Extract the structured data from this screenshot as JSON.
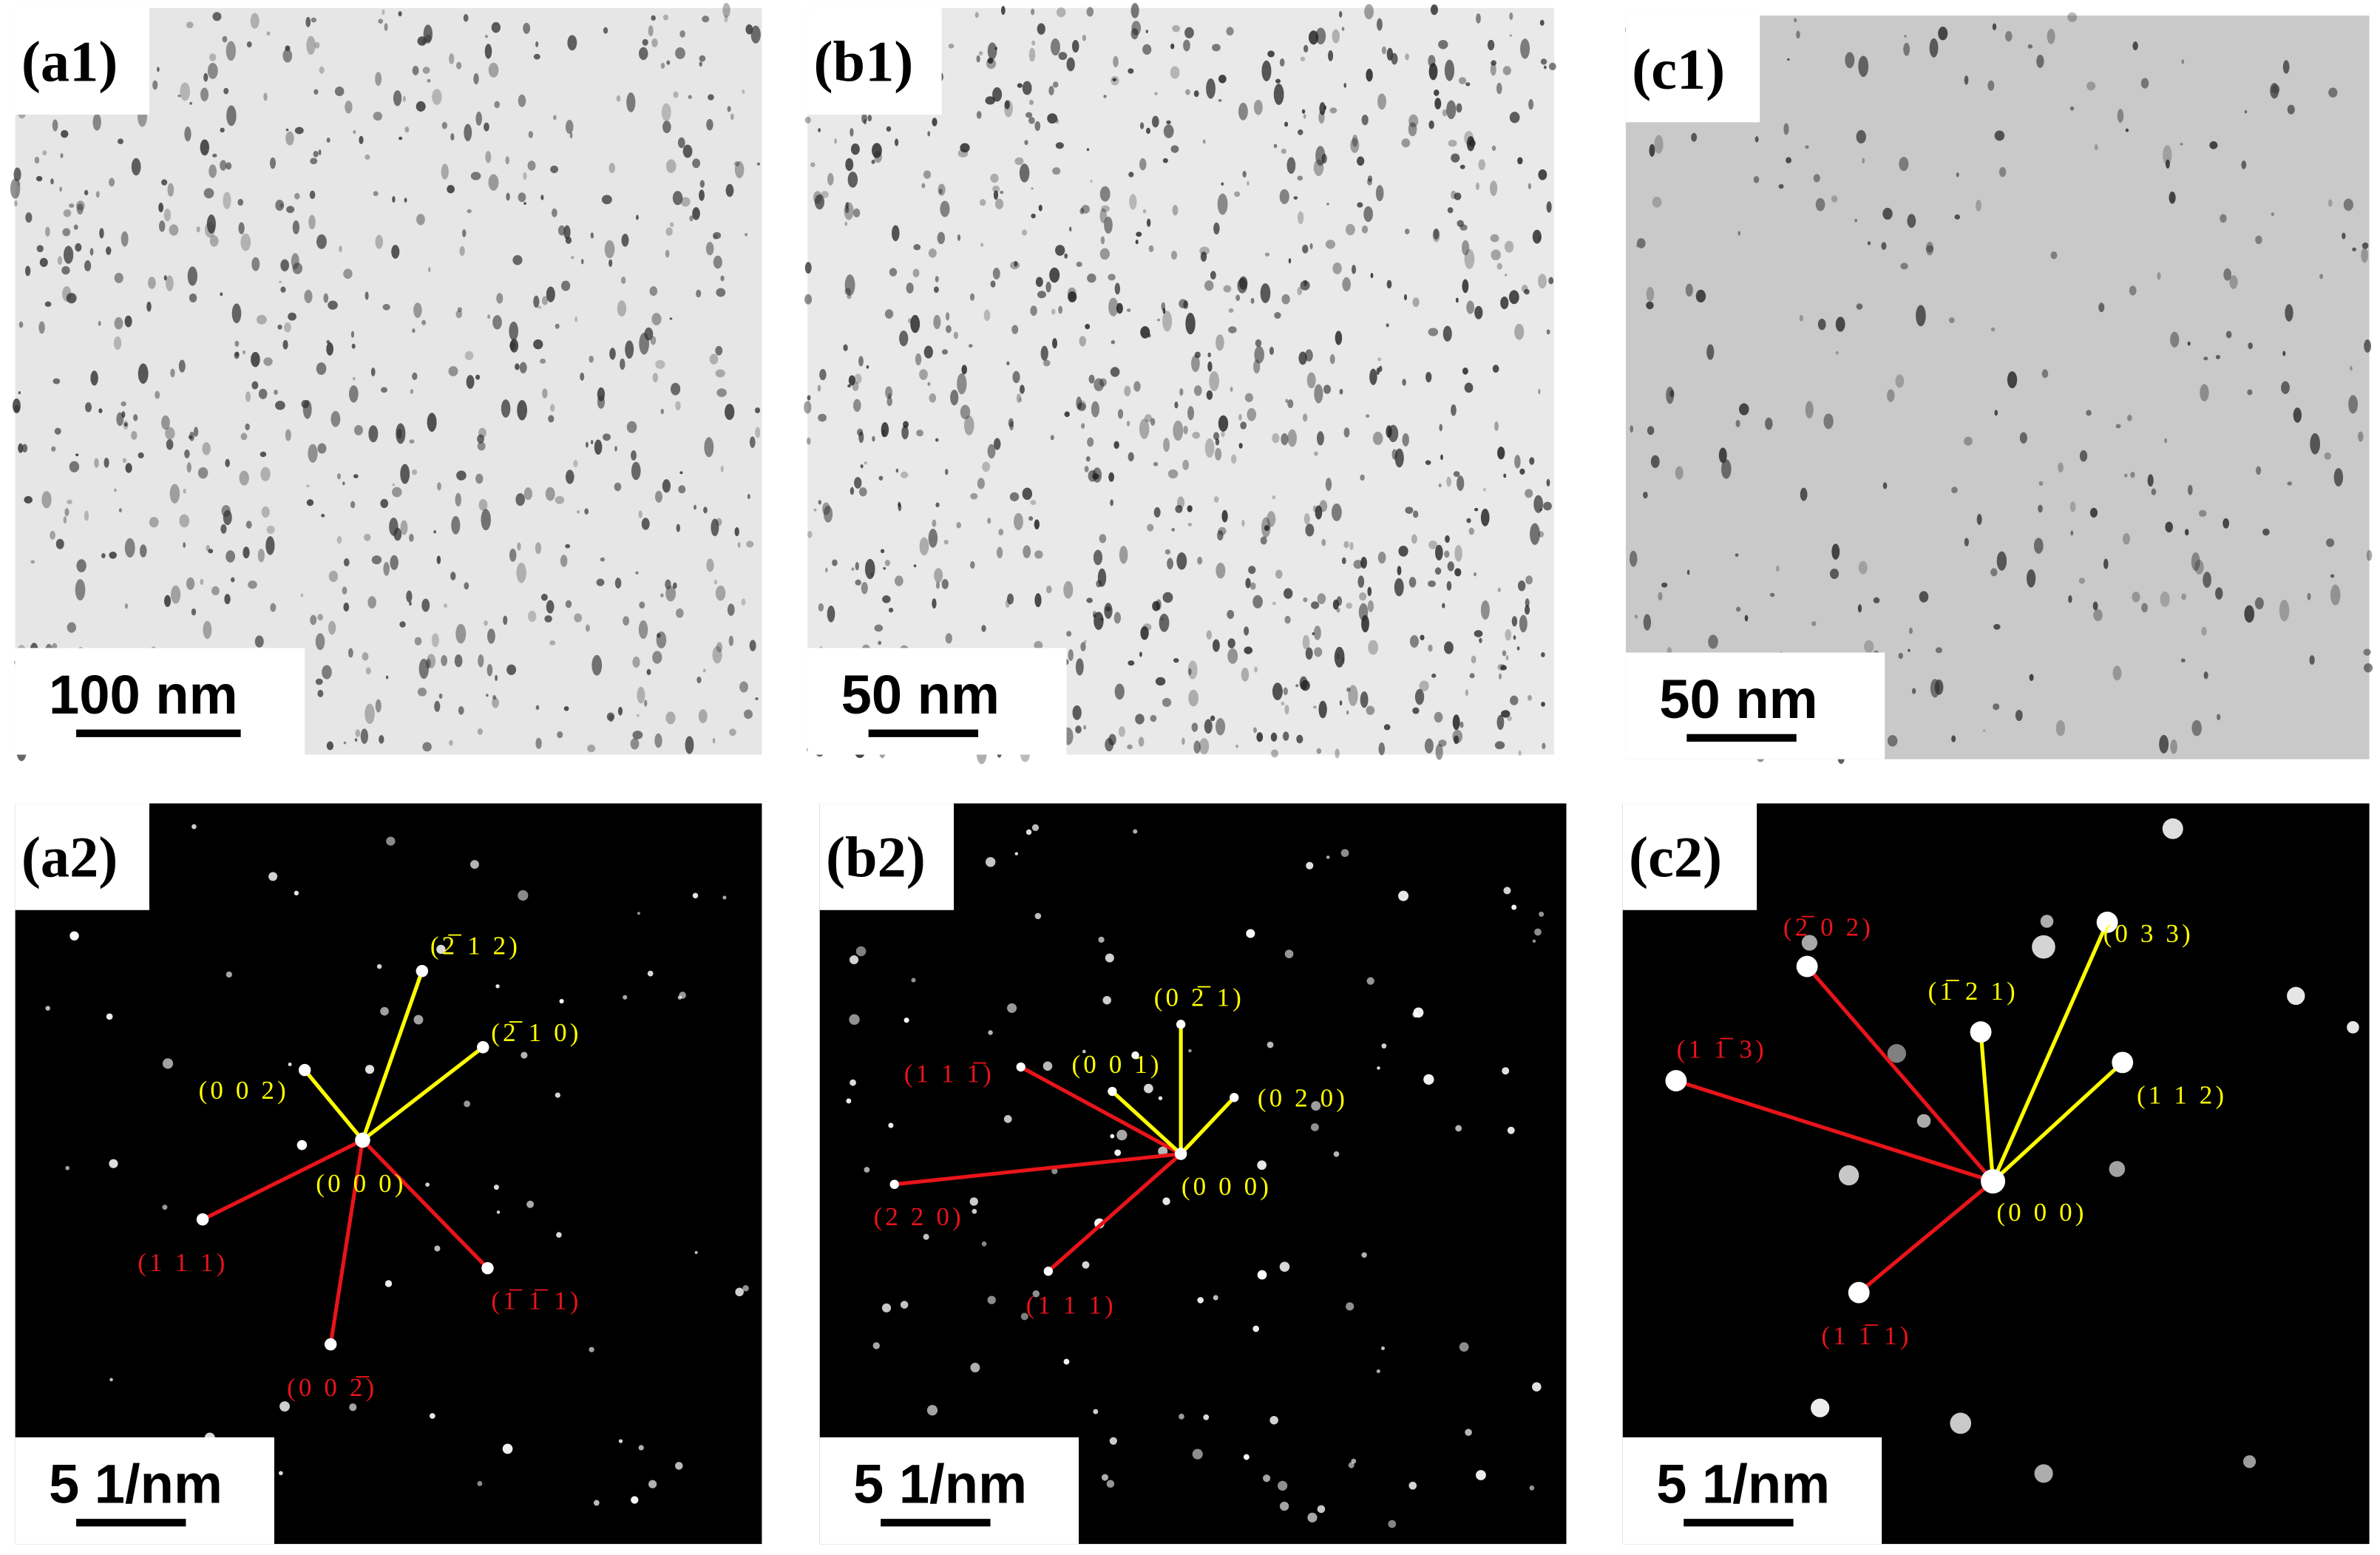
{
  "panels": [
    {
      "label": "(a1)",
      "scale_bar": "100 nm"
    },
    {
      "label": "(b1)",
      "scale_bar": "50 nm"
    },
    {
      "label": "(c1)",
      "scale_bar": "50 nm"
    },
    {
      "label": "(a2)",
      "scale_bar": "5 1/nm",
      "center_label": "(0 0 0)",
      "spots": [
        {
          "label": "(2̅ 1 2)",
          "color": "#ffff00"
        },
        {
          "label": "(2̅ 1 0)",
          "color": "#ffff00"
        },
        {
          "label": "(0 0 2)",
          "color": "#ffff00"
        },
        {
          "label": "(1 1 1)",
          "color": "#e8141a"
        },
        {
          "label": "(1̅ 1̅ 1)",
          "color": "#e8141a"
        },
        {
          "label": "(0 0 2̅)",
          "color": "#e8141a"
        }
      ]
    },
    {
      "label": "(b2)",
      "scale_bar": "5 1/nm",
      "center_label": "(0 0 0)",
      "spots": [
        {
          "label": "(1 1 1̅)",
          "color": "#e8141a"
        },
        {
          "label": "(2 2 0)",
          "color": "#e8141a"
        },
        {
          "label": "(1 1 1)",
          "color": "#e8141a"
        },
        {
          "label": "(0 2̅ 1)",
          "color": "#ffff00"
        },
        {
          "label": "(0 0 1)",
          "color": "#ffff00"
        },
        {
          "label": "(0 2 0)",
          "color": "#ffff00"
        }
      ]
    },
    {
      "label": "(c2)",
      "scale_bar": "5 1/nm",
      "center_label": "(0 0 0)",
      "spots": [
        {
          "label": "(2̅ 0 2)",
          "color": "#e8141a"
        },
        {
          "label": "(1 1̅ 3)",
          "color": "#e8141a"
        },
        {
          "label": "(1 1̅ 1)",
          "color": "#e8141a"
        },
        {
          "label": "(1̅ 2 1)",
          "color": "#ffff00"
        },
        {
          "label": "(0 3 3)",
          "color": "#ffff00"
        },
        {
          "label": "(1 1 2)",
          "color": "#ffff00"
        }
      ]
    }
  ]
}
